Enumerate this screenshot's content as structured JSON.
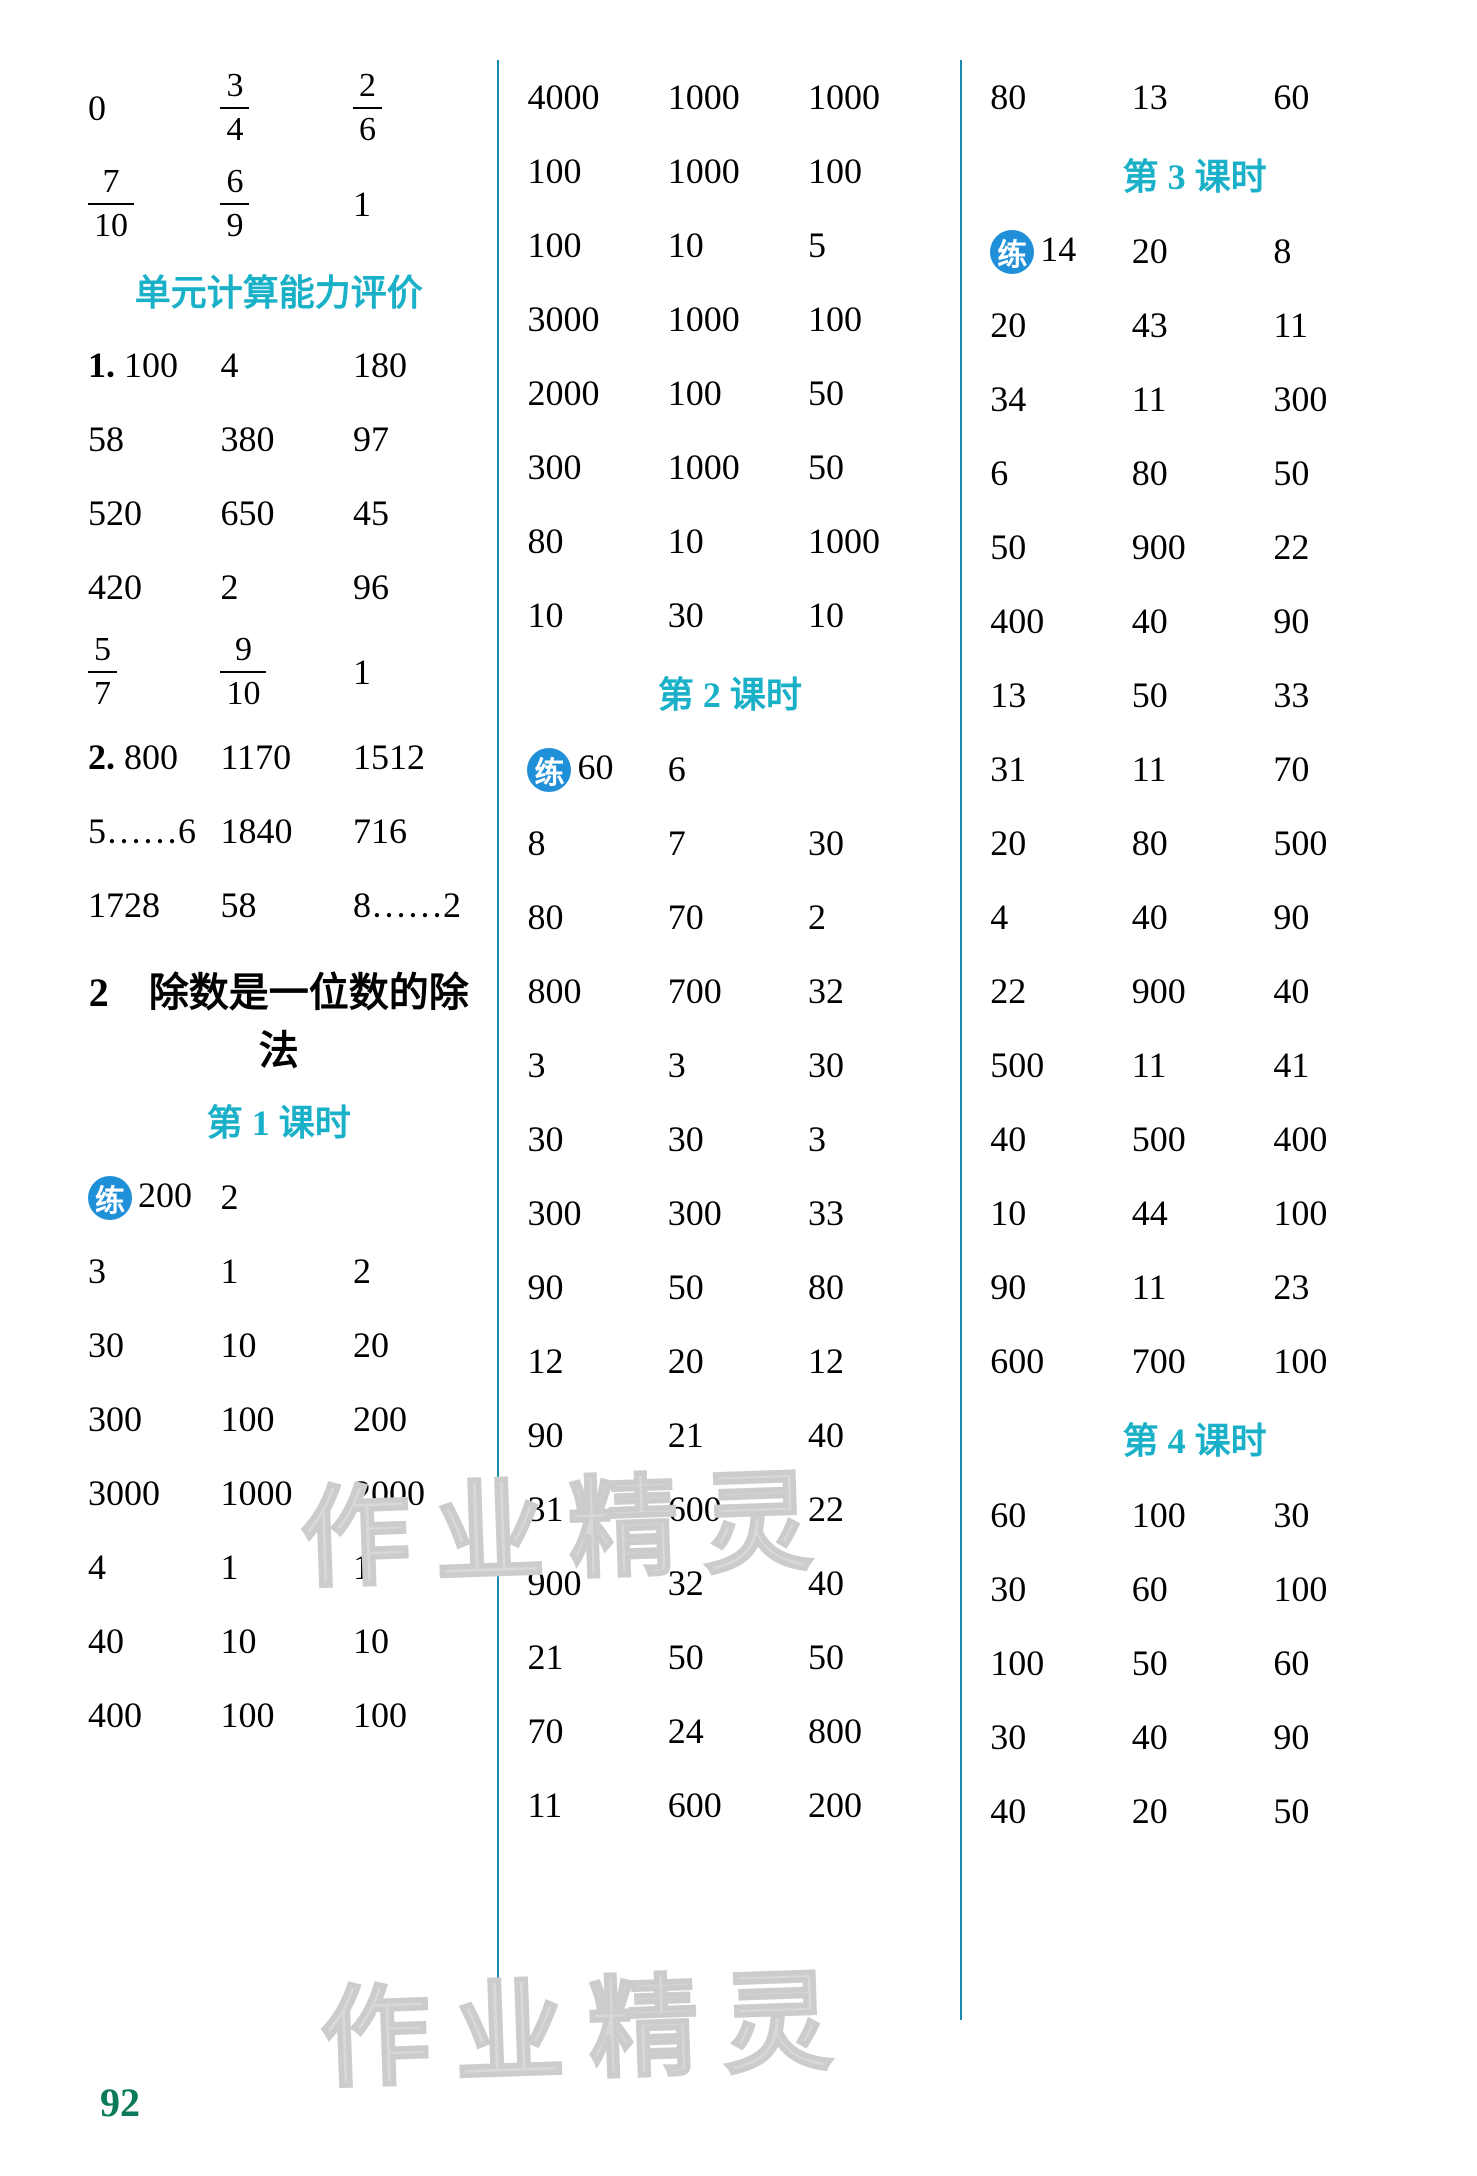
{
  "page_number": "92",
  "watermark_text": "作业精灵",
  "badge_label": "练",
  "column1": {
    "frac_rows": [
      [
        {
          "type": "num",
          "v": "0"
        },
        {
          "type": "frac",
          "n": "3",
          "d": "4"
        },
        {
          "type": "frac",
          "n": "2",
          "d": "6"
        }
      ],
      [
        {
          "type": "frac",
          "n": "7",
          "d": "10"
        },
        {
          "type": "frac",
          "n": "6",
          "d": "9"
        },
        {
          "type": "num",
          "v": "1"
        }
      ]
    ],
    "heading1": "单元计算能力评价",
    "group1_prefix": "1.",
    "group1": [
      [
        "100",
        "4",
        "180"
      ],
      [
        "58",
        "380",
        "97"
      ],
      [
        "520",
        "650",
        "45"
      ],
      [
        "420",
        "2",
        "96"
      ]
    ],
    "frac_row2": [
      {
        "type": "frac",
        "n": "5",
        "d": "7"
      },
      {
        "type": "frac",
        "n": "9",
        "d": "10"
      },
      {
        "type": "num",
        "v": "1"
      }
    ],
    "group2_prefix": "2.",
    "group2": [
      [
        "800",
        "1170",
        "1512"
      ],
      [
        "5……6",
        "1840",
        "716"
      ],
      [
        "1728",
        "58",
        "8……2"
      ]
    ],
    "section_title": "2　除数是一位数的除法",
    "lesson1": "第 1 课时",
    "lian_row": [
      "200",
      "2",
      ""
    ],
    "group3": [
      [
        "3",
        "1",
        "2"
      ],
      [
        "30",
        "10",
        "20"
      ],
      [
        "300",
        "100",
        "200"
      ],
      [
        "3000",
        "1000",
        "2000"
      ],
      [
        "4",
        "1",
        "1"
      ],
      [
        "40",
        "10",
        "10"
      ],
      [
        "400",
        "100",
        "100"
      ]
    ]
  },
  "column2": {
    "group1": [
      [
        "4000",
        "1000",
        "1000"
      ],
      [
        "100",
        "1000",
        "100"
      ],
      [
        "100",
        "10",
        "5"
      ],
      [
        "3000",
        "1000",
        "100"
      ],
      [
        "2000",
        "100",
        "50"
      ],
      [
        "300",
        "1000",
        "50"
      ],
      [
        "80",
        "10",
        "1000"
      ],
      [
        "10",
        "30",
        "10"
      ]
    ],
    "lesson2": "第 2 课时",
    "lian_row": [
      "60",
      "6",
      ""
    ],
    "group2": [
      [
        "8",
        "7",
        "30"
      ],
      [
        "80",
        "70",
        "2"
      ],
      [
        "800",
        "700",
        "32"
      ],
      [
        "3",
        "3",
        "30"
      ],
      [
        "30",
        "30",
        "3"
      ],
      [
        "300",
        "300",
        "33"
      ],
      [
        "90",
        "50",
        "80"
      ],
      [
        "12",
        "20",
        "12"
      ],
      [
        "90",
        "21",
        "40"
      ],
      [
        "31",
        "600",
        "22"
      ],
      [
        "900",
        "32",
        "40"
      ],
      [
        "21",
        "50",
        "50"
      ],
      [
        "70",
        "24",
        "800"
      ],
      [
        "11",
        "600",
        "200"
      ]
    ]
  },
  "column3": {
    "row0": [
      "80",
      "13",
      "60"
    ],
    "lesson3": "第 3 课时",
    "lian_row": [
      "14",
      "20",
      "8"
    ],
    "group1": [
      [
        "20",
        "43",
        "11"
      ],
      [
        "34",
        "11",
        "300"
      ],
      [
        "6",
        "80",
        "50"
      ],
      [
        "50",
        "900",
        "22"
      ],
      [
        "400",
        "40",
        "90"
      ],
      [
        "13",
        "50",
        "33"
      ],
      [
        "31",
        "11",
        "70"
      ],
      [
        "20",
        "80",
        "500"
      ],
      [
        "4",
        "40",
        "90"
      ],
      [
        "22",
        "900",
        "40"
      ],
      [
        "500",
        "11",
        "41"
      ],
      [
        "40",
        "500",
        "400"
      ],
      [
        "10",
        "44",
        "100"
      ],
      [
        "90",
        "11",
        "23"
      ],
      [
        "600",
        "700",
        "100"
      ]
    ],
    "lesson4": "第 4 课时",
    "group2": [
      [
        "60",
        "100",
        "30"
      ],
      [
        "30",
        "60",
        "100"
      ],
      [
        "100",
        "50",
        "60"
      ],
      [
        "30",
        "40",
        "90"
      ],
      [
        "40",
        "20",
        "50"
      ]
    ]
  }
}
